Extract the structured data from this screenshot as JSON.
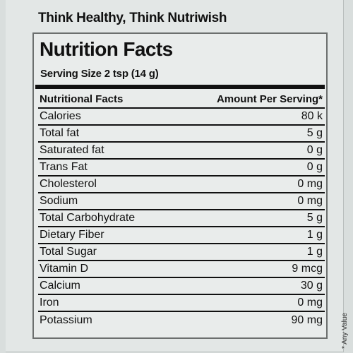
{
  "tagline": "Think Healthy, Think Nutriwish",
  "panel": {
    "title": "Nutrition Facts",
    "serving_size": "Serving Size 2 tsp (14 g)",
    "header": {
      "nutrient": "Nutritional Facts",
      "amount": "Amount Per Serving*"
    },
    "rows": [
      {
        "nutrient": "Calories",
        "amount": "80 k"
      },
      {
        "nutrient": "Total fat",
        "amount": "5 g"
      },
      {
        "nutrient": "Saturated fat",
        "amount": "0 g"
      },
      {
        "nutrient": "Trans Fat",
        "amount": "0 g"
      },
      {
        "nutrient": "Cholesterol",
        "amount": "0 mg"
      },
      {
        "nutrient": "Sodium",
        "amount": "0 mg"
      },
      {
        "nutrient": "Total Carbohydrate",
        "amount": "5 g"
      },
      {
        "nutrient": "Dietary Fiber",
        "amount": "1 g"
      },
      {
        "nutrient": "Total Sugar",
        "amount": "1 g"
      },
      {
        "nutrient": "Vitamin D",
        "amount": "9 mcg"
      },
      {
        "nutrient": "Calcium",
        "amount": "30 g"
      },
      {
        "nutrient": "Iron",
        "amount": "0 mg"
      },
      {
        "nutrient": "Potassium",
        "amount": "90 mg"
      }
    ]
  },
  "side_note": "* Any Value"
}
